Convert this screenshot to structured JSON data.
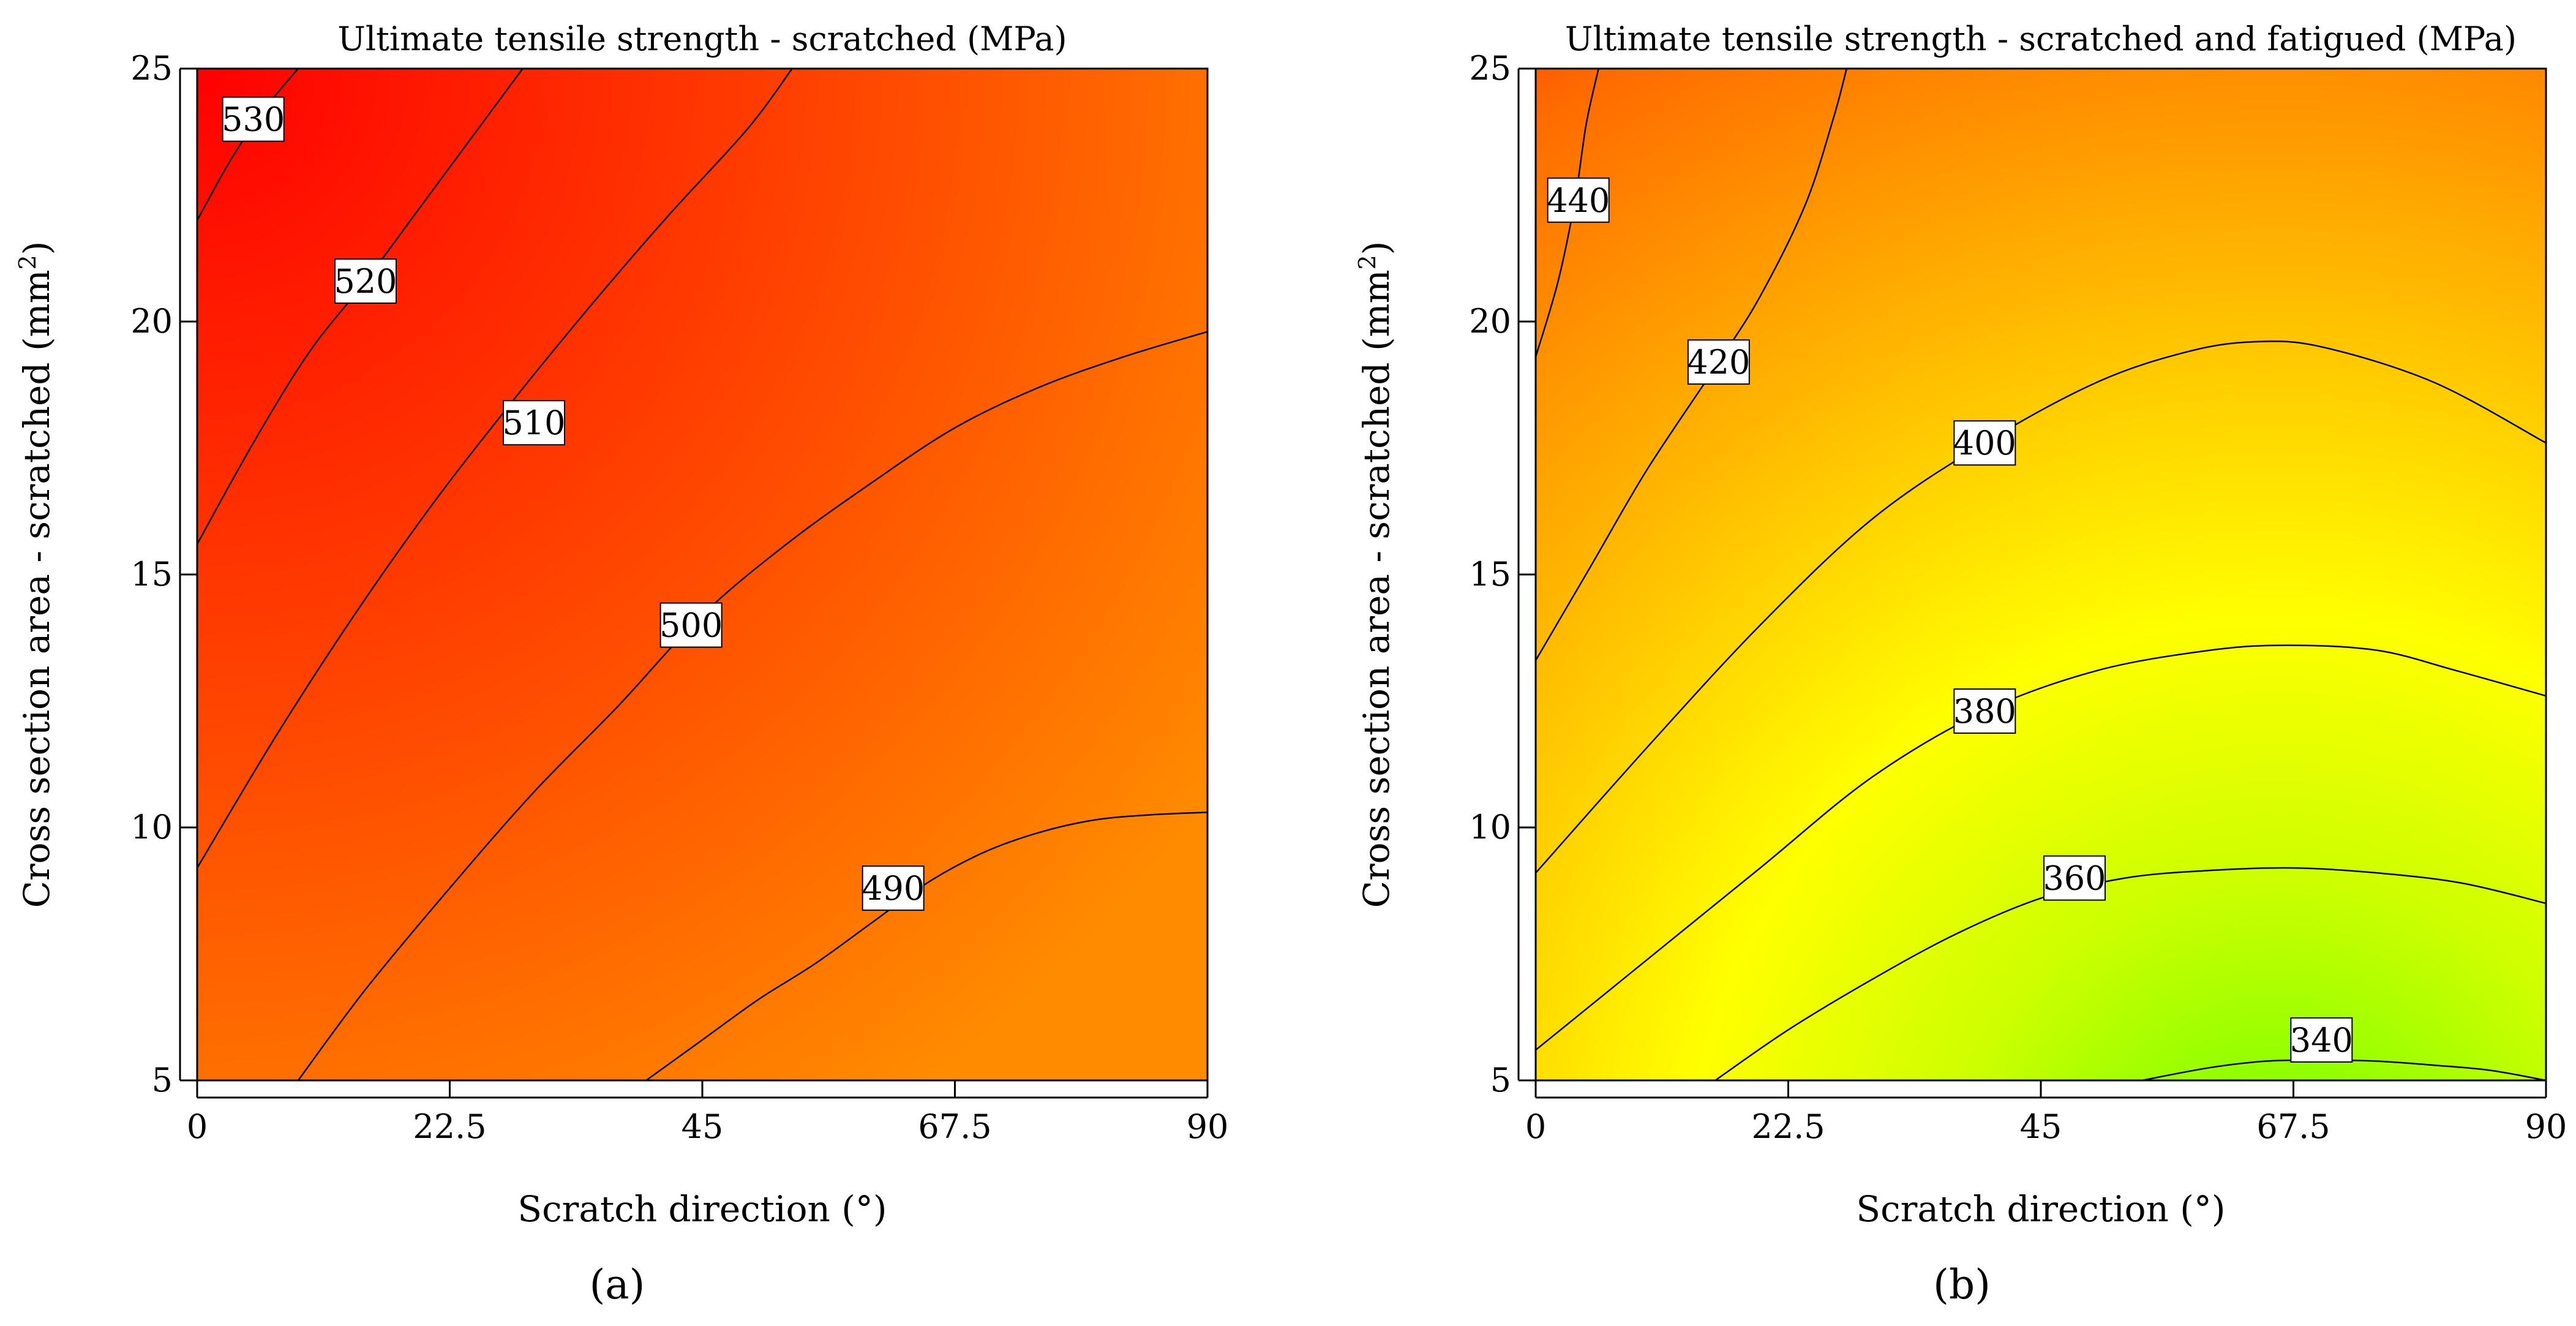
{
  "chart_data": [
    {
      "type": "heatmap",
      "panel_label": "(a)",
      "title": "Ultimate tensile strength - scratched (MPa)",
      "xlabel": "Scratch direction (°)",
      "ylabel": "Cross section area - scratched (mm",
      "ylabel_sup": "2",
      "ylabel_end": ")",
      "xlim": [
        0,
        90
      ],
      "ylim": [
        5,
        25
      ],
      "xticks": [
        0,
        22.5,
        45,
        67.5,
        90
      ],
      "xtick_labels": [
        "0",
        "22.5",
        "45",
        "67.5",
        "90"
      ],
      "yticks": [
        5,
        10,
        15,
        20,
        25
      ],
      "ytick_labels": [
        "5",
        "10",
        "15",
        "20",
        "25"
      ],
      "colorscale": {
        "low": 480,
        "high": 540,
        "low_color": "#ff8c00",
        "high_color": "#ff0000"
      },
      "contour_levels": [
        {
          "level": 530,
          "label": "530",
          "label_at": [
            5.0,
            24.0
          ],
          "points": [
            [
              0,
              22.0
            ],
            [
              3,
              23.2
            ],
            [
              6,
              24.2
            ],
            [
              9,
              25.0
            ]
          ]
        },
        {
          "level": 520,
          "label": "520",
          "label_at": [
            15.0,
            20.8
          ],
          "points": [
            [
              0,
              15.6
            ],
            [
              5,
              17.6
            ],
            [
              10,
              19.4
            ],
            [
              15,
              20.8
            ],
            [
              20,
              22.3
            ],
            [
              25,
              23.8
            ],
            [
              29,
              25.0
            ]
          ]
        },
        {
          "level": 510,
          "label": "510",
          "label_at": [
            30.0,
            18.0
          ],
          "points": [
            [
              0,
              9.2
            ],
            [
              7,
              11.8
            ],
            [
              14,
              14.2
            ],
            [
              21,
              16.4
            ],
            [
              28,
              18.4
            ],
            [
              35,
              20.3
            ],
            [
              42,
              22.1
            ],
            [
              49,
              23.8
            ],
            [
              53,
              25.0
            ]
          ]
        },
        {
          "level": 500,
          "label": "500",
          "label_at": [
            44.0,
            14.0
          ],
          "points": [
            [
              9,
              5.0
            ],
            [
              15,
              6.8
            ],
            [
              22.5,
              8.8
            ],
            [
              30,
              10.7
            ],
            [
              37.5,
              12.4
            ],
            [
              45,
              14.2
            ],
            [
              52.5,
              15.6
            ],
            [
              60,
              16.8
            ],
            [
              67.5,
              17.9
            ],
            [
              75,
              18.7
            ],
            [
              82.5,
              19.3
            ],
            [
              90,
              19.8
            ]
          ]
        },
        {
          "level": 490,
          "label": "490",
          "label_at": [
            62.0,
            8.8
          ],
          "points": [
            [
              40,
              5.0
            ],
            [
              45,
              5.8
            ],
            [
              50,
              6.6
            ],
            [
              55,
              7.3
            ],
            [
              60,
              8.1
            ],
            [
              65,
              8.9
            ],
            [
              70,
              9.5
            ],
            [
              75,
              9.9
            ],
            [
              80,
              10.15
            ],
            [
              85,
              10.25
            ],
            [
              90,
              10.3
            ]
          ]
        }
      ]
    },
    {
      "type": "heatmap",
      "panel_label": "(b)",
      "title": "Ultimate tensile strength - scratched and fatigued (MPa)",
      "xlabel": "Scratch direction (°)",
      "ylabel": "Cross section area - scratched (mm",
      "ylabel_sup": "2",
      "ylabel_end": ")",
      "xlim": [
        0,
        90
      ],
      "ylim": [
        5,
        25
      ],
      "xticks": [
        0,
        22.5,
        45,
        67.5,
        90
      ],
      "xtick_labels": [
        "0",
        "22.5",
        "45",
        "67.5",
        "90"
      ],
      "yticks": [
        5,
        10,
        15,
        20,
        25
      ],
      "ytick_labels": [
        "5",
        "10",
        "15",
        "20",
        "25"
      ],
      "colorscale": {
        "low": 320,
        "high": 450,
        "stops": [
          "#66ff00",
          "#ffff00",
          "#ff8c00",
          "#ff0000"
        ]
      },
      "contour_levels": [
        {
          "level": 440,
          "label": "440",
          "label_at": [
            3.8,
            22.4
          ],
          "points": [
            [
              0,
              19.3
            ],
            [
              2,
              20.8
            ],
            [
              3.5,
              22.4
            ],
            [
              4.5,
              23.9
            ],
            [
              5.6,
              25.0
            ]
          ]
        },
        {
          "level": 420,
          "label": "420",
          "label_at": [
            16.3,
            19.2
          ],
          "points": [
            [
              0,
              13.3
            ],
            [
              5,
              15.2
            ],
            [
              10,
              17.1
            ],
            [
              16.3,
              19.2
            ],
            [
              20,
              20.5
            ],
            [
              24,
              22.3
            ],
            [
              26.5,
              24.0
            ],
            [
              27.7,
              25.0
            ]
          ]
        },
        {
          "level": 400,
          "label": "400",
          "label_at": [
            40.0,
            17.6
          ],
          "points": [
            [
              0,
              9.1
            ],
            [
              10,
              11.6
            ],
            [
              20,
              14.0
            ],
            [
              30,
              16.1
            ],
            [
              40,
              17.6
            ],
            [
              50,
              18.8
            ],
            [
              58,
              19.4
            ],
            [
              64,
              19.6
            ],
            [
              70,
              19.5
            ],
            [
              80,
              18.8
            ],
            [
              90,
              17.6
            ]
          ]
        },
        {
          "level": 380,
          "label": "380",
          "label_at": [
            40.0,
            12.3
          ],
          "points": [
            [
              0,
              5.6
            ],
            [
              10,
              7.4
            ],
            [
              20,
              9.2
            ],
            [
              30,
              11.0
            ],
            [
              40,
              12.3
            ],
            [
              50,
              13.1
            ],
            [
              60,
              13.5
            ],
            [
              67,
              13.6
            ],
            [
              75,
              13.5
            ],
            [
              82,
              13.1
            ],
            [
              90,
              12.6
            ]
          ]
        },
        {
          "level": 360,
          "label": "360",
          "label_at": [
            48.0,
            9.0
          ],
          "points": [
            [
              16,
              5.0
            ],
            [
              22.5,
              6.0
            ],
            [
              30,
              7.0
            ],
            [
              37.5,
              7.9
            ],
            [
              45,
              8.6
            ],
            [
              52.5,
              9.0
            ],
            [
              60,
              9.15
            ],
            [
              67.5,
              9.2
            ],
            [
              75,
              9.1
            ],
            [
              82.5,
              8.9
            ],
            [
              90,
              8.5
            ]
          ]
        },
        {
          "level": 340,
          "label": "340",
          "label_at": [
            70.0,
            5.8
          ],
          "points": [
            [
              54,
              5.0
            ],
            [
              60,
              5.25
            ],
            [
              65,
              5.38
            ],
            [
              70,
              5.4
            ],
            [
              75,
              5.38
            ],
            [
              80,
              5.3
            ],
            [
              85,
              5.2
            ],
            [
              90,
              5.0
            ]
          ]
        }
      ]
    }
  ]
}
